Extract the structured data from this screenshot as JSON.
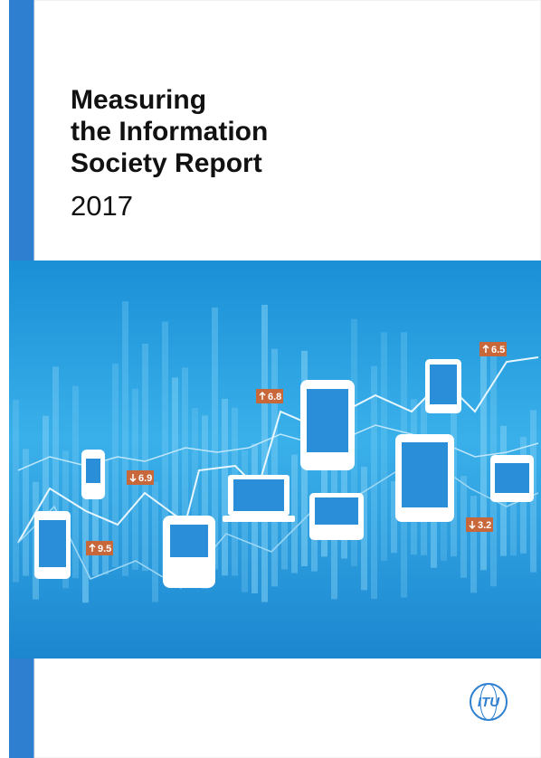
{
  "cover": {
    "title_lines": [
      "Measuring",
      "the Information",
      "Society Report"
    ],
    "year": "2017",
    "badges": [
      "6.8",
      "6.9",
      "9.5",
      "6.5",
      "3.2"
    ],
    "logo": "ITU"
  }
}
